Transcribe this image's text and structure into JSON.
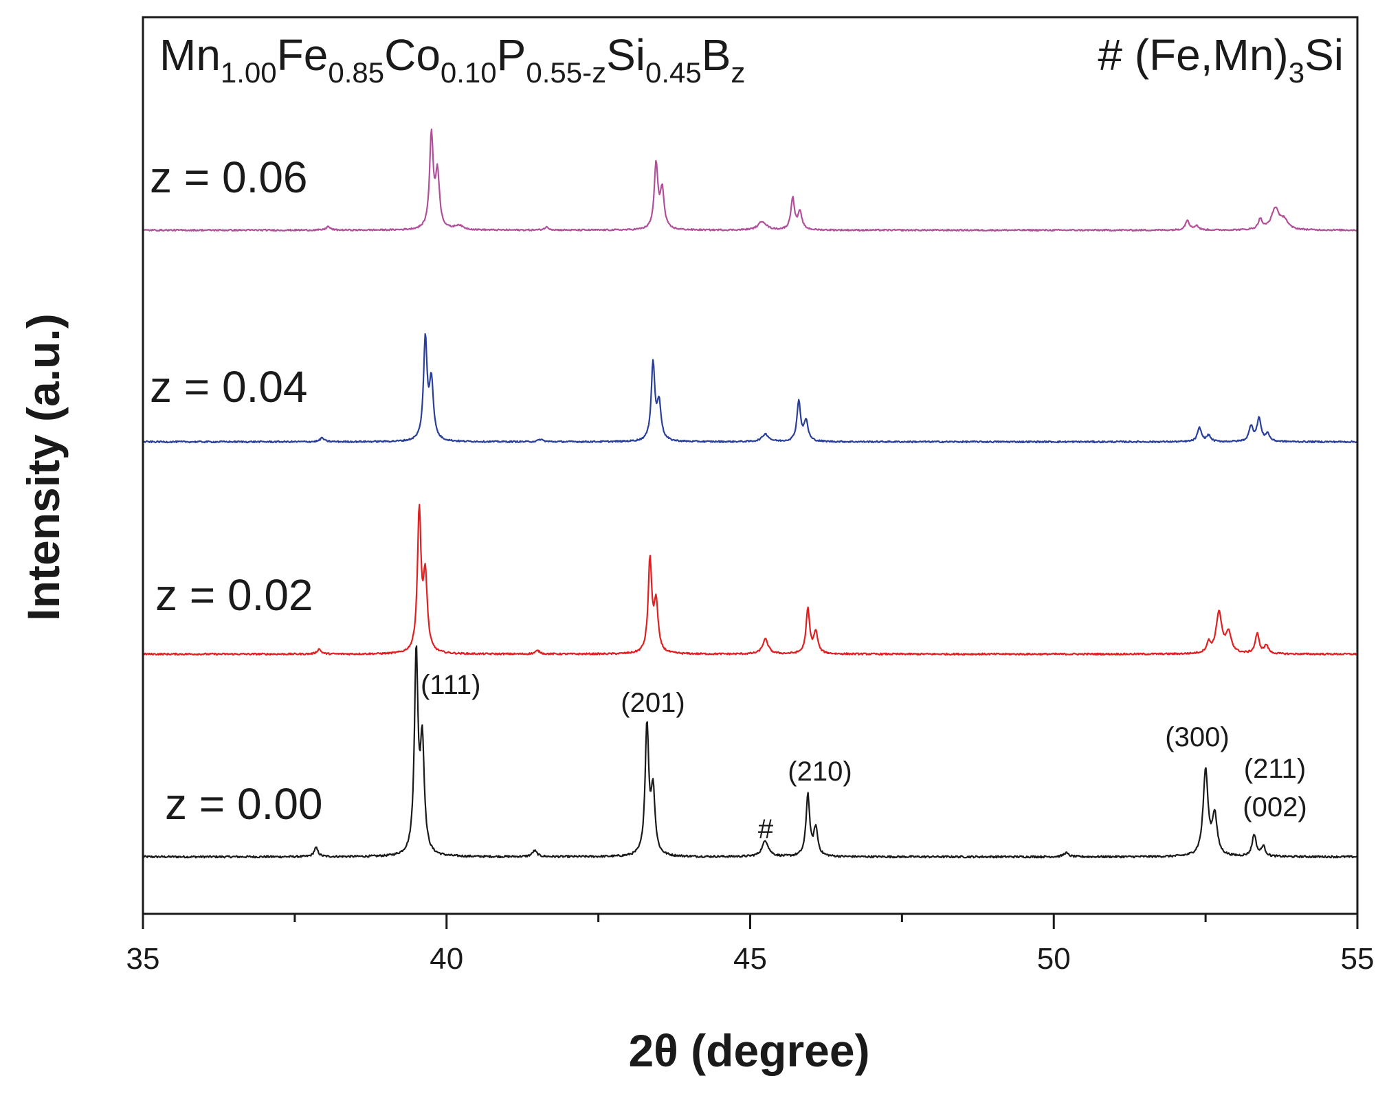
{
  "chart_data": {
    "type": "line",
    "xlabel": "2θ (degree)",
    "ylabel": "Intensity (a.u.)",
    "xlim": [
      35,
      55
    ],
    "xticks": [
      "35",
      "40",
      "45",
      "50",
      "55"
    ],
    "xtick_values": [
      35,
      40,
      45,
      50,
      55
    ],
    "minor_xticks": [
      37.5,
      42.5,
      47.5,
      52.5
    ],
    "grid": false,
    "title": {
      "parts": [
        {
          "text": "Mn",
          "sub": false
        },
        {
          "text": "1.00",
          "sub": true
        },
        {
          "text": "Fe",
          "sub": false
        },
        {
          "text": "0.85",
          "sub": true
        },
        {
          "text": "Co",
          "sub": false
        },
        {
          "text": "0.10",
          "sub": true
        },
        {
          "text": "P",
          "sub": false
        },
        {
          "text": "0.55-z",
          "sub": true
        },
        {
          "text": "Si",
          "sub": false
        },
        {
          "text": "0.45",
          "sub": true
        },
        {
          "text": "B",
          "sub": false
        },
        {
          "text": "z",
          "sub": true
        }
      ]
    },
    "impurity_legend": {
      "parts": [
        {
          "text": "# (Fe,Mn)",
          "sub": false
        },
        {
          "text": "3",
          "sub": true
        },
        {
          "text": "Si",
          "sub": false
        }
      ]
    },
    "series": [
      {
        "name": "z = 0.00",
        "color": "#1a1a1a",
        "offset": 0,
        "peaks": [
          {
            "x": 37.85,
            "h": 0.045,
            "w": 0.05
          },
          {
            "x": 39.5,
            "h": 1.0,
            "w": 0.045
          },
          {
            "x": 39.6,
            "h": 0.55,
            "w": 0.05
          },
          {
            "x": 41.45,
            "h": 0.03,
            "w": 0.06
          },
          {
            "x": 43.3,
            "h": 0.65,
            "w": 0.045
          },
          {
            "x": 43.4,
            "h": 0.32,
            "w": 0.05
          },
          {
            "x": 45.25,
            "h": 0.08,
            "w": 0.08
          },
          {
            "x": 45.95,
            "h": 0.31,
            "w": 0.045
          },
          {
            "x": 46.08,
            "h": 0.14,
            "w": 0.05
          },
          {
            "x": 50.2,
            "h": 0.02,
            "w": 0.06
          },
          {
            "x": 52.5,
            "h": 0.43,
            "w": 0.06
          },
          {
            "x": 52.65,
            "h": 0.2,
            "w": 0.06
          },
          {
            "x": 53.3,
            "h": 0.11,
            "w": 0.05
          },
          {
            "x": 53.45,
            "h": 0.05,
            "w": 0.05
          }
        ]
      },
      {
        "name": "z = 0.02",
        "color": "#e02020",
        "offset": 1,
        "peaks": [
          {
            "x": 37.9,
            "h": 0.03,
            "w": 0.05
          },
          {
            "x": 39.55,
            "h": 0.85,
            "w": 0.045
          },
          {
            "x": 39.65,
            "h": 0.45,
            "w": 0.05
          },
          {
            "x": 41.5,
            "h": 0.02,
            "w": 0.06
          },
          {
            "x": 43.35,
            "h": 0.56,
            "w": 0.045
          },
          {
            "x": 43.45,
            "h": 0.3,
            "w": 0.05
          },
          {
            "x": 45.25,
            "h": 0.09,
            "w": 0.07
          },
          {
            "x": 45.95,
            "h": 0.27,
            "w": 0.045
          },
          {
            "x": 46.08,
            "h": 0.13,
            "w": 0.05
          },
          {
            "x": 52.55,
            "h": 0.06,
            "w": 0.05
          },
          {
            "x": 52.72,
            "h": 0.25,
            "w": 0.07
          },
          {
            "x": 52.88,
            "h": 0.12,
            "w": 0.07
          },
          {
            "x": 53.35,
            "h": 0.12,
            "w": 0.05
          },
          {
            "x": 53.5,
            "h": 0.05,
            "w": 0.05
          }
        ]
      },
      {
        "name": "z = 0.04",
        "color": "#2a3f9a",
        "offset": 2,
        "peaks": [
          {
            "x": 37.95,
            "h": 0.025,
            "w": 0.05
          },
          {
            "x": 39.65,
            "h": 0.65,
            "w": 0.045
          },
          {
            "x": 39.75,
            "h": 0.38,
            "w": 0.05
          },
          {
            "x": 41.55,
            "h": 0.015,
            "w": 0.06
          },
          {
            "x": 43.4,
            "h": 0.5,
            "w": 0.045
          },
          {
            "x": 43.5,
            "h": 0.24,
            "w": 0.05
          },
          {
            "x": 45.25,
            "h": 0.05,
            "w": 0.08
          },
          {
            "x": 45.8,
            "h": 0.26,
            "w": 0.045
          },
          {
            "x": 45.92,
            "h": 0.13,
            "w": 0.05
          },
          {
            "x": 52.4,
            "h": 0.09,
            "w": 0.05
          },
          {
            "x": 52.55,
            "h": 0.04,
            "w": 0.05
          },
          {
            "x": 53.25,
            "h": 0.1,
            "w": 0.05
          },
          {
            "x": 53.38,
            "h": 0.15,
            "w": 0.05
          },
          {
            "x": 53.52,
            "h": 0.05,
            "w": 0.05
          }
        ]
      },
      {
        "name": "z = 0.06",
        "color": "#b0509a",
        "offset": 3,
        "peaks": [
          {
            "x": 38.05,
            "h": 0.025,
            "w": 0.05
          },
          {
            "x": 39.75,
            "h": 0.65,
            "w": 0.045
          },
          {
            "x": 39.85,
            "h": 0.38,
            "w": 0.05
          },
          {
            "x": 40.2,
            "h": 0.03,
            "w": 0.1
          },
          {
            "x": 41.65,
            "h": 0.02,
            "w": 0.06
          },
          {
            "x": 43.45,
            "h": 0.45,
            "w": 0.045
          },
          {
            "x": 43.55,
            "h": 0.27,
            "w": 0.05
          },
          {
            "x": 45.2,
            "h": 0.06,
            "w": 0.1
          },
          {
            "x": 45.7,
            "h": 0.22,
            "w": 0.045
          },
          {
            "x": 45.82,
            "h": 0.12,
            "w": 0.05
          },
          {
            "x": 52.2,
            "h": 0.07,
            "w": 0.05
          },
          {
            "x": 52.35,
            "h": 0.03,
            "w": 0.05
          },
          {
            "x": 53.4,
            "h": 0.07,
            "w": 0.05
          },
          {
            "x": 53.65,
            "h": 0.15,
            "w": 0.1
          },
          {
            "x": 53.8,
            "h": 0.06,
            "w": 0.08
          }
        ]
      }
    ],
    "annotations": [
      {
        "text": "(111)",
        "x": 39.5
      },
      {
        "text": "(201)",
        "x": 43.3
      },
      {
        "text": "(210)",
        "x": 45.95
      },
      {
        "text": "#",
        "x": 45.25
      },
      {
        "text": "(300)",
        "x": 52.5
      },
      {
        "text": "(211)",
        "x": 53.35
      },
      {
        "text": "(002)",
        "x": 53.35
      }
    ]
  }
}
